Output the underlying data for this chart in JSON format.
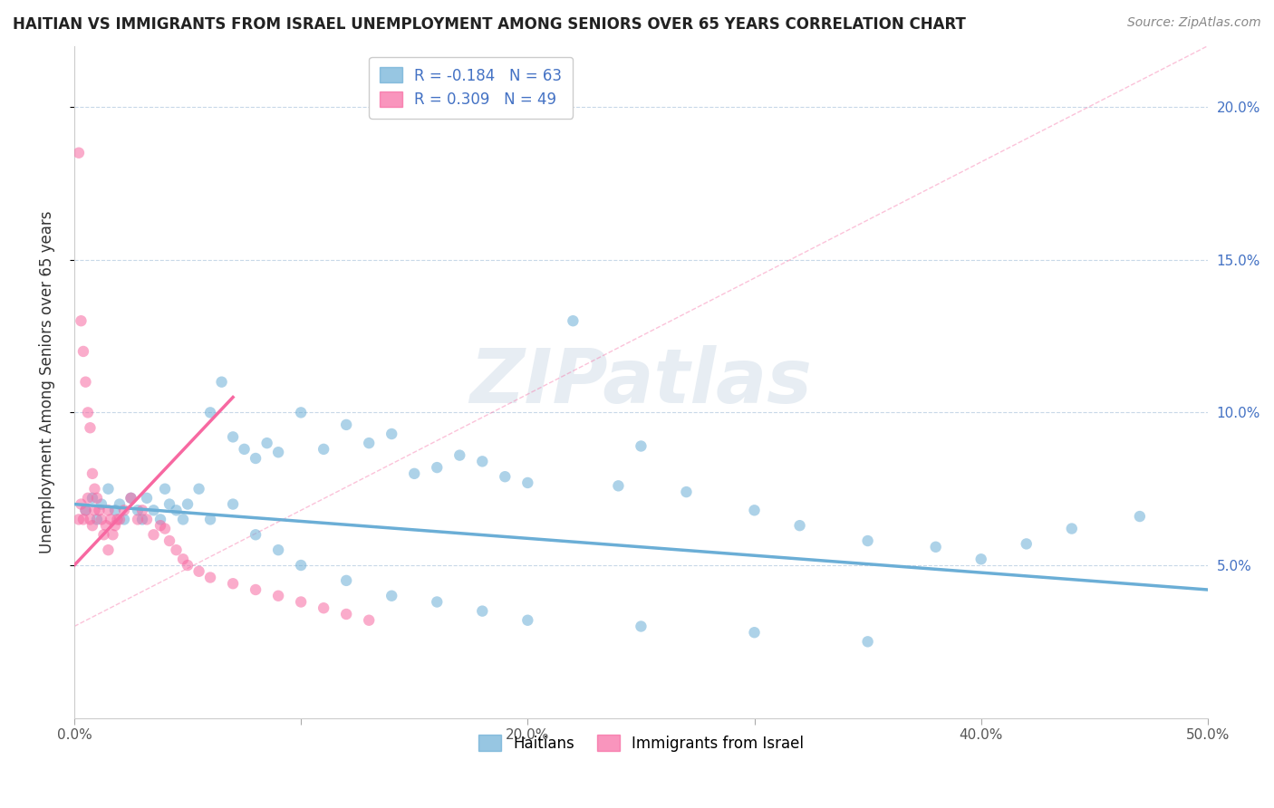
{
  "title": "HAITIAN VS IMMIGRANTS FROM ISRAEL UNEMPLOYMENT AMONG SENIORS OVER 65 YEARS CORRELATION CHART",
  "source": "Source: ZipAtlas.com",
  "ylabel": "Unemployment Among Seniors over 65 years",
  "xlim": [
    0.0,
    0.5
  ],
  "ylim": [
    0.0,
    0.22
  ],
  "xticks": [
    0.0,
    0.1,
    0.2,
    0.3,
    0.4,
    0.5
  ],
  "xticklabels": [
    "0.0%",
    "",
    "20.0%",
    "",
    "40.0%",
    "50.0%"
  ],
  "yticks": [
    0.05,
    0.1,
    0.15,
    0.2
  ],
  "yticklabels_right": [
    "5.0%",
    "10.0%",
    "15.0%",
    "20.0%"
  ],
  "legend_entries": [
    {
      "label": "Haitians",
      "color": "#6baed6",
      "R": -0.184,
      "N": 63
    },
    {
      "label": "Immigrants from Israel",
      "color": "#f768a1",
      "R": 0.309,
      "N": 49
    }
  ],
  "watermark": "ZIPatlas",
  "blue_scatter_x": [
    0.005,
    0.008,
    0.01,
    0.012,
    0.015,
    0.018,
    0.02,
    0.022,
    0.025,
    0.028,
    0.03,
    0.032,
    0.035,
    0.038,
    0.04,
    0.042,
    0.045,
    0.048,
    0.05,
    0.055,
    0.06,
    0.065,
    0.07,
    0.075,
    0.08,
    0.085,
    0.09,
    0.1,
    0.11,
    0.12,
    0.13,
    0.14,
    0.15,
    0.16,
    0.17,
    0.18,
    0.19,
    0.2,
    0.22,
    0.24,
    0.25,
    0.27,
    0.3,
    0.32,
    0.35,
    0.38,
    0.4,
    0.42,
    0.44,
    0.47,
    0.06,
    0.07,
    0.08,
    0.09,
    0.1,
    0.12,
    0.14,
    0.16,
    0.18,
    0.2,
    0.25,
    0.3,
    0.35
  ],
  "blue_scatter_y": [
    0.068,
    0.072,
    0.065,
    0.07,
    0.075,
    0.068,
    0.07,
    0.065,
    0.072,
    0.068,
    0.065,
    0.072,
    0.068,
    0.065,
    0.075,
    0.07,
    0.068,
    0.065,
    0.07,
    0.075,
    0.1,
    0.11,
    0.092,
    0.088,
    0.085,
    0.09,
    0.087,
    0.1,
    0.088,
    0.096,
    0.09,
    0.093,
    0.08,
    0.082,
    0.086,
    0.084,
    0.079,
    0.077,
    0.13,
    0.076,
    0.089,
    0.074,
    0.068,
    0.063,
    0.058,
    0.056,
    0.052,
    0.057,
    0.062,
    0.066,
    0.065,
    0.07,
    0.06,
    0.055,
    0.05,
    0.045,
    0.04,
    0.038,
    0.035,
    0.032,
    0.03,
    0.028,
    0.025
  ],
  "pink_scatter_x": [
    0.002,
    0.003,
    0.004,
    0.005,
    0.006,
    0.007,
    0.008,
    0.009,
    0.01,
    0.011,
    0.012,
    0.013,
    0.014,
    0.015,
    0.016,
    0.017,
    0.018,
    0.019,
    0.02,
    0.022,
    0.025,
    0.028,
    0.03,
    0.032,
    0.035,
    0.038,
    0.04,
    0.042,
    0.045,
    0.048,
    0.05,
    0.055,
    0.06,
    0.07,
    0.08,
    0.09,
    0.1,
    0.11,
    0.12,
    0.13,
    0.002,
    0.003,
    0.004,
    0.005,
    0.006,
    0.007,
    0.008,
    0.009,
    0.015
  ],
  "pink_scatter_y": [
    0.065,
    0.07,
    0.065,
    0.068,
    0.072,
    0.065,
    0.063,
    0.068,
    0.072,
    0.068,
    0.065,
    0.06,
    0.063,
    0.068,
    0.065,
    0.06,
    0.063,
    0.065,
    0.065,
    0.068,
    0.072,
    0.065,
    0.068,
    0.065,
    0.06,
    0.063,
    0.062,
    0.058,
    0.055,
    0.052,
    0.05,
    0.048,
    0.046,
    0.044,
    0.042,
    0.04,
    0.038,
    0.036,
    0.034,
    0.032,
    0.185,
    0.13,
    0.12,
    0.11,
    0.1,
    0.095,
    0.08,
    0.075,
    0.055
  ],
  "blue_line_x": [
    0.0,
    0.5
  ],
  "blue_line_y": [
    0.07,
    0.042
  ],
  "pink_line_x": [
    0.0,
    0.07
  ],
  "pink_line_y": [
    0.05,
    0.105
  ],
  "pink_dashed_line_x": [
    0.0,
    0.5
  ],
  "pink_dashed_line_y": [
    0.03,
    0.22
  ],
  "grid_color": "#c8d8e8",
  "background_color": "#ffffff",
  "scatter_alpha": 0.55,
  "scatter_size": 80
}
